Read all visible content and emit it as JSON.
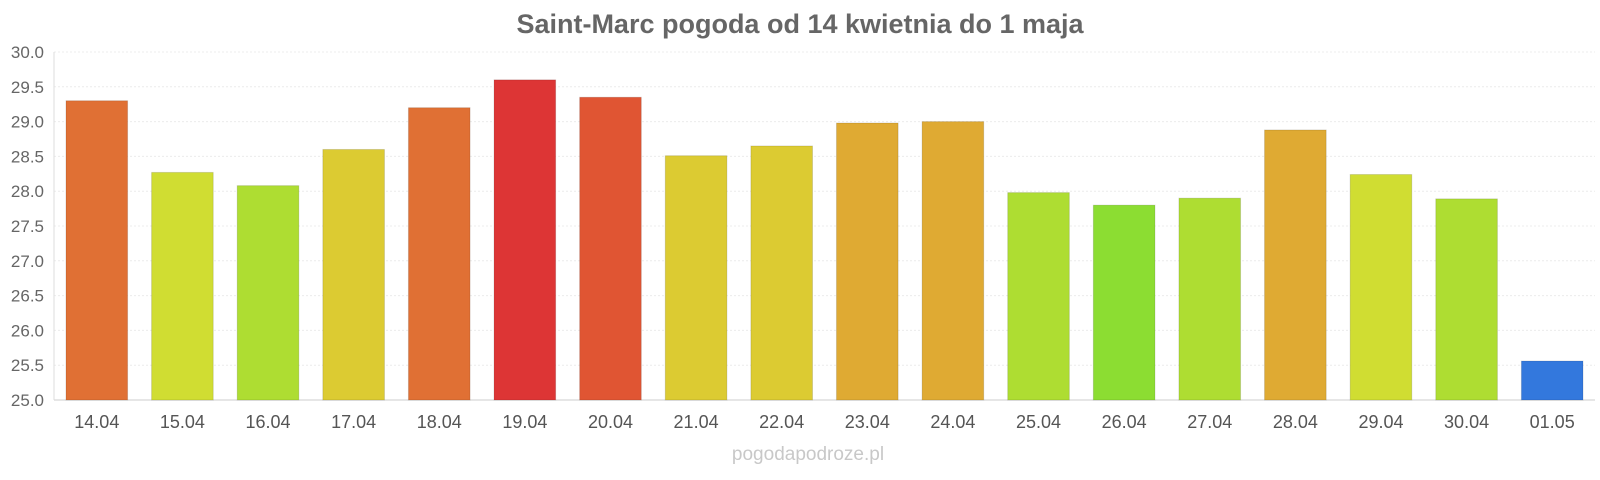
{
  "chart_data": {
    "type": "bar",
    "title": "Saint-Marc pogoda od 14 kwietnia do 1 maja",
    "xlabel": "",
    "ylabel": "",
    "ylim": [
      25.0,
      30.0
    ],
    "yticks": [
      "25.0",
      "25.5",
      "26.0",
      "26.5",
      "27.0",
      "27.5",
      "28.0",
      "28.5",
      "29.0",
      "29.5",
      "30.0"
    ],
    "grid": true,
    "categories": [
      "14.04",
      "15.04",
      "16.04",
      "17.04",
      "18.04",
      "19.04",
      "20.04",
      "21.04",
      "22.04",
      "23.04",
      "24.04",
      "25.04",
      "26.04",
      "27.04",
      "28.04",
      "29.04",
      "30.04",
      "01.05"
    ],
    "values": [
      29.3,
      28.27,
      28.08,
      28.6,
      29.2,
      29.6,
      29.35,
      28.51,
      28.65,
      28.98,
      29.0,
      27.98,
      27.8,
      27.9,
      28.88,
      28.24,
      27.89,
      25.56
    ],
    "colors": [
      "#e07034",
      "#d0dd32",
      "#aedd32",
      "#dccb32",
      "#e07034",
      "#dd3535",
      "#e05533",
      "#dccb32",
      "#dccb32",
      "#dfaa33",
      "#dfaa33",
      "#aedd32",
      "#8cdd32",
      "#aedd32",
      "#dfaa33",
      "#d0dd32",
      "#aedd32",
      "#3378dd"
    ]
  },
  "footer": {
    "text": "pogodapodroze.pl"
  }
}
